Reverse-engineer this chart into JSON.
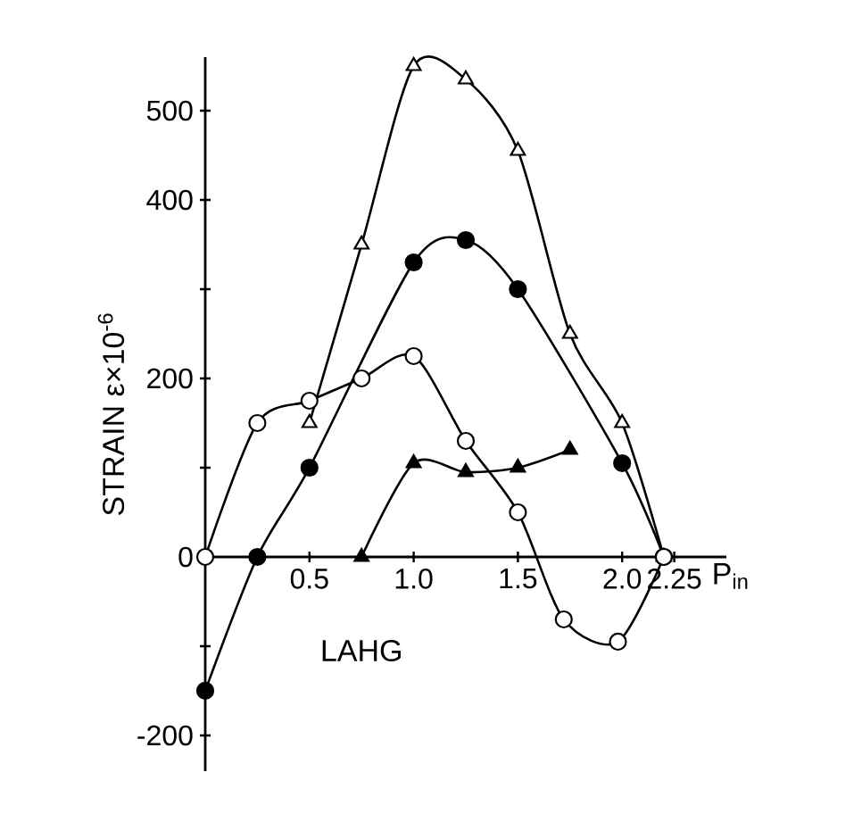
{
  "chart_data": {
    "type": "line",
    "xlabel": "P$_{in}$",
    "ylabel": "STRAIN  ε×10$^{-6}$",
    "annotations": [
      "LAHG"
    ],
    "xlim": [
      0,
      2.5
    ],
    "ylim": [
      -240,
      560
    ],
    "xticks": [
      {
        "value": 0.5,
        "label": "0.5"
      },
      {
        "value": 1.0,
        "label": "1.0"
      },
      {
        "value": 1.5,
        "label": "1.5"
      },
      {
        "value": 2.0,
        "label": "2.0"
      },
      {
        "value": 2.25,
        "label": "2.25"
      }
    ],
    "yticks": [
      {
        "value": -200,
        "label": "-200"
      },
      {
        "value": -100,
        "label": null
      },
      {
        "value": 0,
        "label": "0"
      },
      {
        "value": 100,
        "label": null
      },
      {
        "value": 200,
        "label": "200"
      },
      {
        "value": 300,
        "label": null
      },
      {
        "value": 400,
        "label": "400"
      },
      {
        "value": 500,
        "label": "500"
      }
    ],
    "grid": false,
    "line_style": "solid",
    "series": [
      {
        "color": "#000000",
        "marker": "triangle",
        "colors": [
          "#ffffff",
          "#ffffff",
          "#ffffff",
          "#ffffff",
          "#ffffff",
          "#ffffff",
          "#ffffff",
          "#ffffff"
        ],
        "x": [
          0.5,
          0.75,
          1.0,
          1.25,
          1.5,
          1.75,
          2.0,
          2.2
        ],
        "values": [
          150,
          350,
          550,
          535,
          455,
          250,
          150,
          0
        ]
      },
      {
        "color": "#000000",
        "marker": "circle",
        "colors": [
          "#000000",
          "#000000",
          "#000000",
          "#000000",
          "#000000",
          "#000000",
          "#000000",
          "#000000"
        ],
        "x": [
          0,
          0.25,
          0.5,
          1.0,
          1.25,
          1.5,
          2.0,
          2.2
        ],
        "values": [
          -150,
          0,
          100,
          330,
          355,
          300,
          105,
          0
        ]
      },
      {
        "color": "#000000",
        "marker": "circle",
        "colors": [
          "#ffffff",
          "#ffffff",
          "#ffffff",
          "#ffffff",
          "#ffffff",
          "#ffffff",
          "#ffffff",
          "#ffffff",
          "#ffffff",
          "#ffffff"
        ],
        "x": [
          0,
          0.25,
          0.5,
          0.75,
          1.0,
          1.25,
          1.5,
          1.72,
          1.98,
          2.2
        ],
        "values": [
          0,
          150,
          175,
          200,
          225,
          130,
          50,
          -70,
          -95,
          0
        ]
      },
      {
        "color": "#000000",
        "marker": "triangle",
        "colors": [
          "#000000",
          "#000000",
          "#000000",
          "#000000",
          "#000000"
        ],
        "x": [
          0.75,
          1.0,
          1.25,
          1.5,
          1.75
        ],
        "values": [
          0,
          105,
          95,
          100,
          120
        ]
      }
    ]
  }
}
